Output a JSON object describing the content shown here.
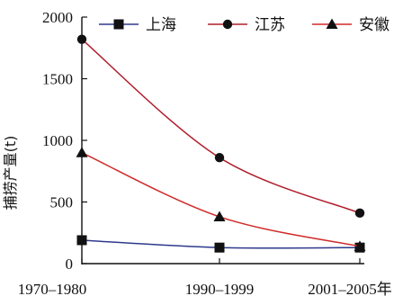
{
  "chart_data": {
    "type": "line",
    "title": "",
    "categories": [
      "1970–1980",
      "1990–1999",
      "2001–2005年"
    ],
    "ylabel": "捕捞产量(t)",
    "xlabel": "",
    "ylim": [
      0,
      2000
    ],
    "yticks": [
      0,
      500,
      1000,
      1500,
      2000
    ],
    "grid": false,
    "legend_position": "top",
    "series": [
      {
        "name": "上海",
        "values": [
          190,
          130,
          130
        ],
        "color": "#2e3a8c",
        "marker": "square"
      },
      {
        "name": "江苏",
        "values": [
          1820,
          860,
          410
        ],
        "color": "#b01e2b",
        "marker": "circle"
      },
      {
        "name": "安徽",
        "values": [
          900,
          380,
          140
        ],
        "color": "#d12a2a",
        "marker": "triangle"
      }
    ]
  }
}
